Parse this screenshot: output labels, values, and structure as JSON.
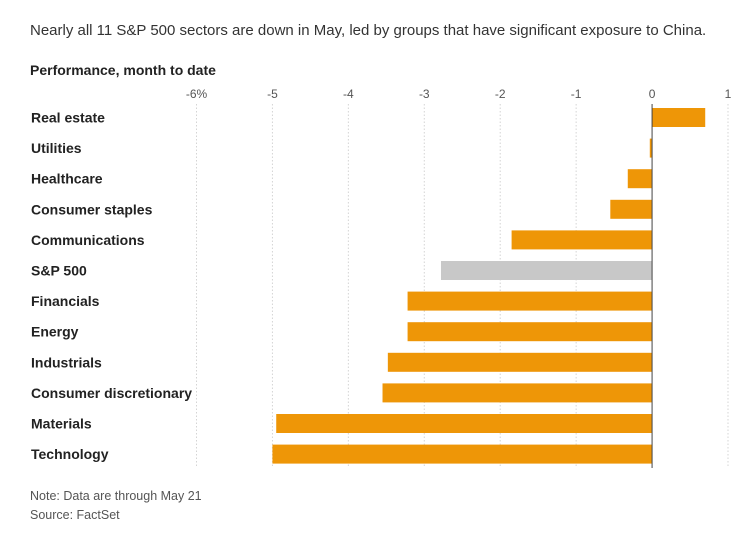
{
  "title": "Nearly all 11 S&P 500 sectors are down in May, led by groups that have significant exposure to China.",
  "colors": {
    "bar": "#ee9607",
    "highlight": "#c8c8c8",
    "grid": "#d4d4d4",
    "axis": "#444444"
  },
  "chart_data": {
    "type": "bar",
    "orientation": "horizontal",
    "subtitle": "Performance, month to date",
    "xlim": [
      -6,
      1
    ],
    "ticks": [
      -6,
      -5,
      -4,
      -3,
      -2,
      -1,
      0,
      1
    ],
    "tick_labels": [
      "-6%",
      "-5",
      "-4",
      "-3",
      "-2",
      "-1",
      "0",
      "1"
    ],
    "categories": [
      "Real estate",
      "Utilities",
      "Healthcare",
      "Consumer staples",
      "Communications",
      "S&P 500",
      "Financials",
      "Energy",
      "Industrials",
      "Consumer discretionary",
      "Materials",
      "Technology"
    ],
    "values": [
      0.7,
      -0.03,
      -0.32,
      -0.55,
      -1.85,
      -2.78,
      -3.22,
      -3.22,
      -3.48,
      -3.55,
      -4.95,
      -5.0
    ],
    "highlight": [
      "S&P 500"
    ],
    "grid": true
  },
  "note": "Note: Data are through May 21",
  "source": "Source: FactSet"
}
